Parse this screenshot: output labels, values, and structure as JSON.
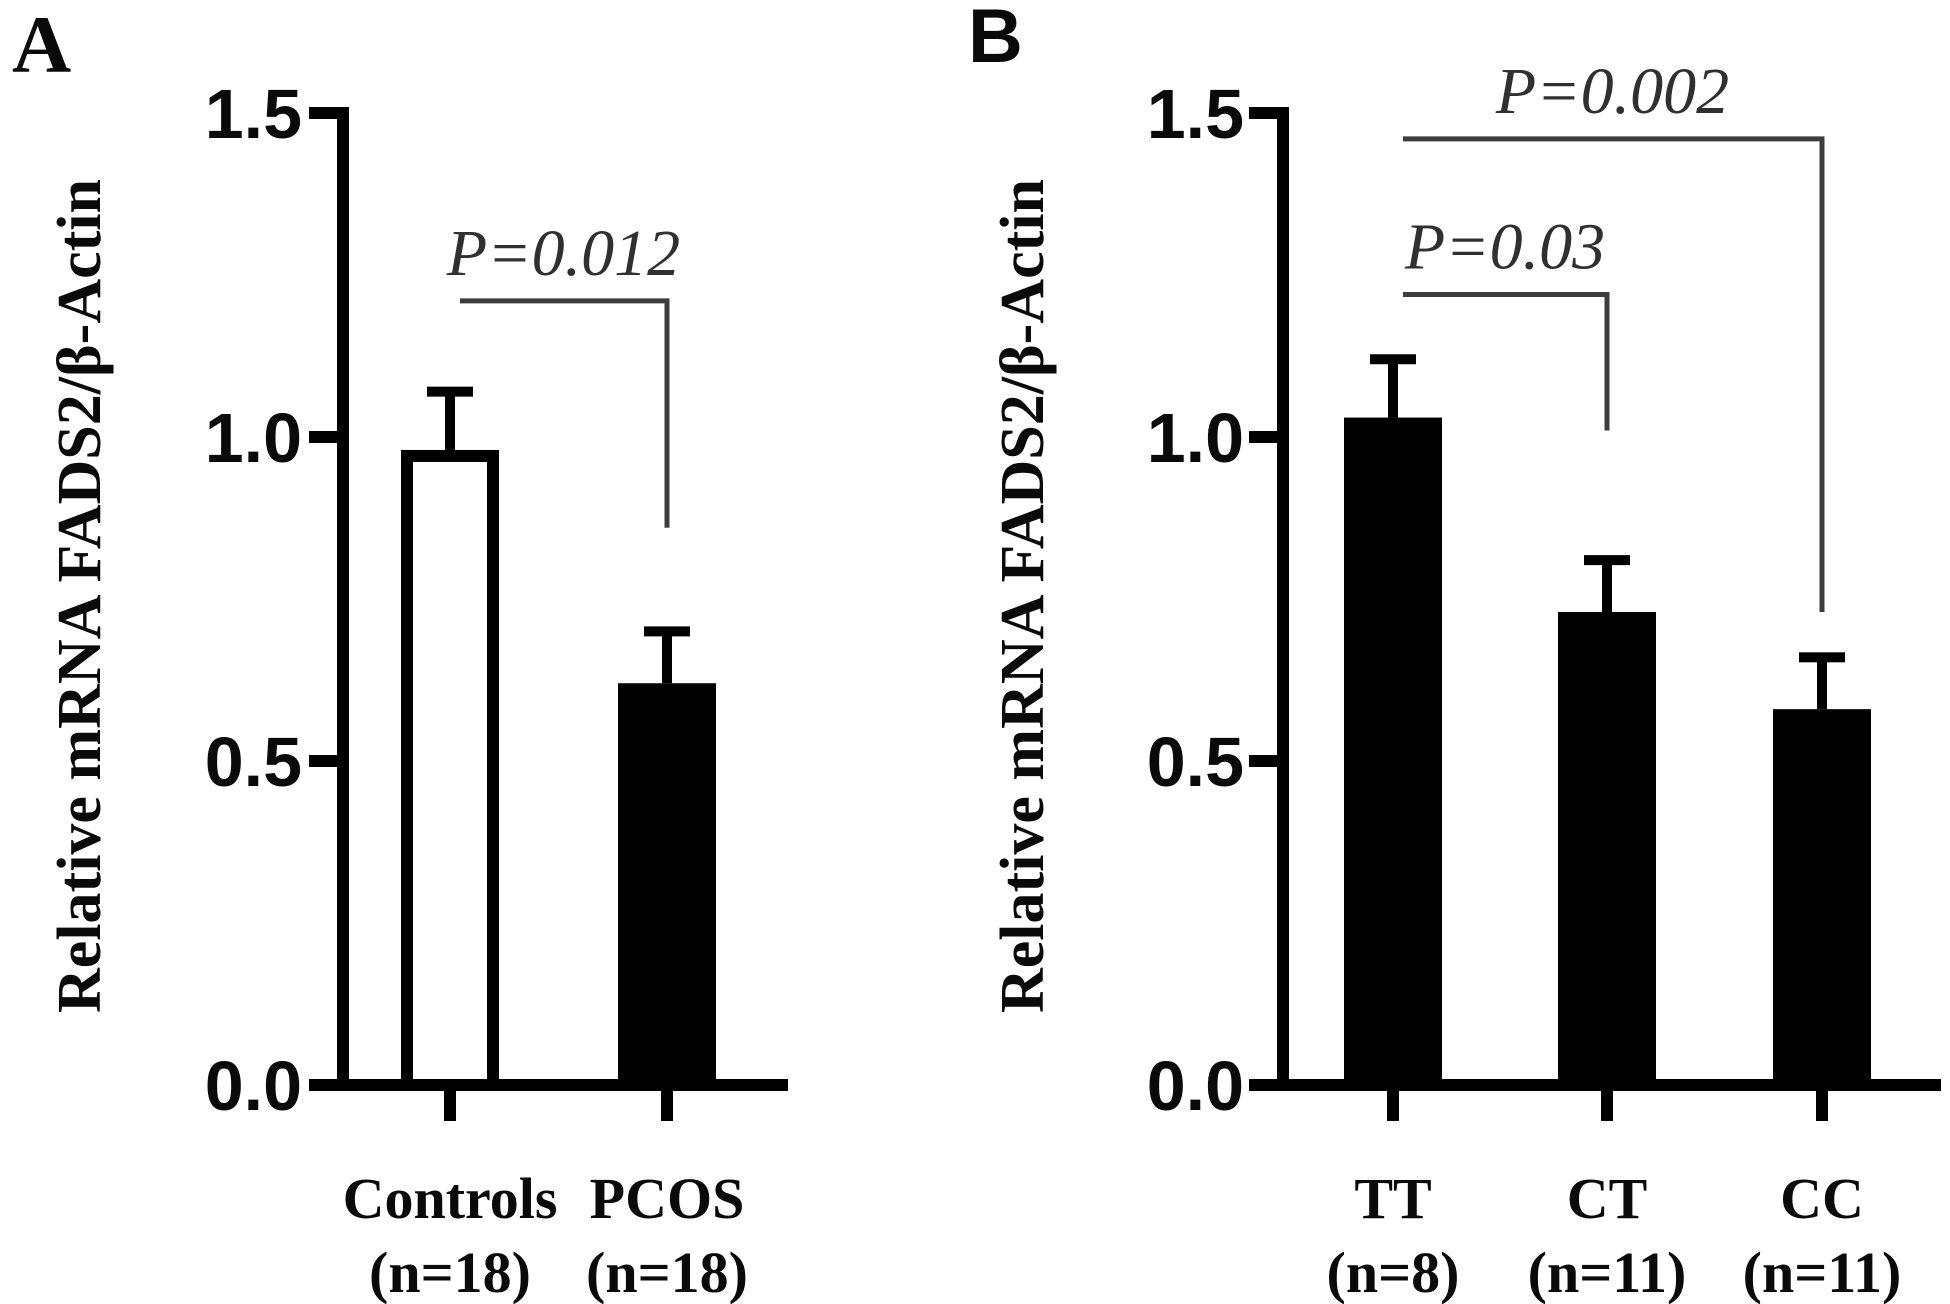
{
  "figure": {
    "background": "#ffffff",
    "ink_color": "#000000",
    "bracket_color": "#3d3d3d",
    "p_text_color": "#303030"
  },
  "chart_data": [
    {
      "type": "bar",
      "panel_label": "A",
      "title": "",
      "xlabel": "",
      "ylabel": "Relative mRNA FADS2/β-Actin",
      "ylim": [
        0,
        1.5
      ],
      "grid": false,
      "legend_position": "none",
      "yticks": [
        {
          "v": 1.5,
          "label": "1.5"
        },
        {
          "v": 1.0,
          "label": "1.0"
        },
        {
          "v": 0.5,
          "label": "0.5"
        },
        {
          "v": 0.0,
          "label": "0.0"
        }
      ],
      "categories": [
        {
          "line1": "Controls",
          "line2": "(n=18)"
        },
        {
          "line1": "PCOS",
          "line2": "(n=18)"
        }
      ],
      "series": [
        {
          "name": "Relative mRNA FADS2/β-Actin",
          "values": [
            0.98,
            0.62
          ],
          "errors_upper": [
            0.09,
            0.08
          ],
          "bar_styles": [
            "open",
            "filled"
          ]
        }
      ],
      "significance": [
        {
          "label": "P=0.012",
          "from": 0,
          "to": 1,
          "bar_y": 1.21,
          "drop_to": 0.86
        }
      ]
    },
    {
      "type": "bar",
      "panel_label": "B",
      "title": "",
      "xlabel": "",
      "ylabel": "Relative mRNA FADS2/β-Actin",
      "ylim": [
        0,
        1.5
      ],
      "grid": false,
      "legend_position": "none",
      "yticks": [
        {
          "v": 1.5,
          "label": "1.5"
        },
        {
          "v": 1.0,
          "label": "1.0"
        },
        {
          "v": 0.5,
          "label": "0.5"
        },
        {
          "v": 0.0,
          "label": "0.0"
        }
      ],
      "categories": [
        {
          "line1": "TT",
          "line2": "(n=8)"
        },
        {
          "line1": "CT",
          "line2": "(n=11)"
        },
        {
          "line1": "CC",
          "line2": "(n=11)"
        }
      ],
      "series": [
        {
          "name": "Relative mRNA FADS2/β-Actin",
          "values": [
            1.03,
            0.73,
            0.58
          ],
          "errors_upper": [
            0.09,
            0.08,
            0.08
          ],
          "bar_styles": [
            "filled",
            "filled",
            "filled"
          ]
        }
      ],
      "significance": [
        {
          "label": "P=0.03",
          "from": 0,
          "to": 1,
          "bar_y": 1.22,
          "drop_to": 1.01
        },
        {
          "label": "P=0.002",
          "from": 0,
          "to": 2,
          "bar_y": 1.46,
          "drop_to": 0.73
        }
      ]
    }
  ]
}
